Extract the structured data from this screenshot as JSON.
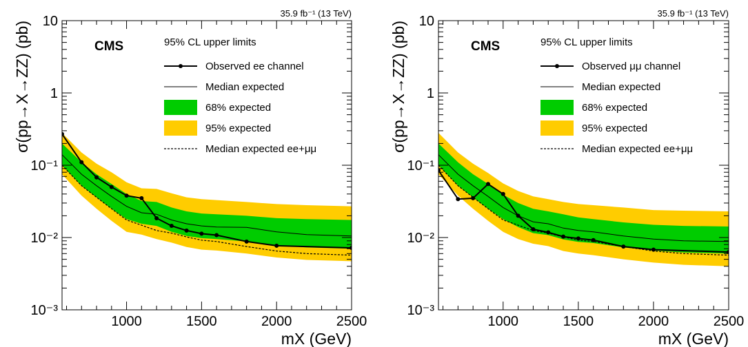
{
  "chart_data": [
    {
      "type": "line",
      "lumi_label": "35.9 fb⁻¹ (13 TeV)",
      "experiment": "CMS",
      "legend_title": "95% CL upper limits",
      "legend_placement": "top-right",
      "xlabel": "mX (GeV)",
      "ylabel": "σ(pp→X→ZZ) (pb)",
      "xlim": [
        570,
        2500
      ],
      "ylim": [
        0.001,
        10
      ],
      "yscale": "log",
      "x_ticks": [
        "1000",
        "1500",
        "2000",
        "2500"
      ],
      "y_ticks": [
        "10⁻³",
        "10⁻²",
        "10⁻¹",
        "1",
        "10"
      ],
      "series": [
        {
          "name": "Observed ee channel",
          "kind": "observed",
          "color": "#000000",
          "x": [
            570,
            700,
            800,
            900,
            1000,
            1100,
            1200,
            1300,
            1400,
            1500,
            1600,
            1800,
            2000,
            2500
          ],
          "y": [
            0.27,
            0.11,
            0.068,
            0.05,
            0.038,
            0.035,
            0.0185,
            0.0145,
            0.0125,
            0.0113,
            0.0108,
            0.0088,
            0.0077,
            0.0072
          ]
        },
        {
          "name": "Median expected",
          "kind": "median",
          "color": "#000000",
          "x": [
            570,
            700,
            800,
            900,
            1000,
            1100,
            1200,
            1300,
            1400,
            1500,
            1600,
            1800,
            2000,
            2200,
            2500
          ],
          "y": [
            0.14,
            0.075,
            0.052,
            0.037,
            0.027,
            0.022,
            0.021,
            0.0175,
            0.0155,
            0.0145,
            0.014,
            0.0138,
            0.012,
            0.011,
            0.0105
          ]
        },
        {
          "name": "68% expected",
          "kind": "band",
          "color": "#00cc00",
          "x": [
            570,
            700,
            800,
            900,
            1000,
            1100,
            1200,
            1300,
            1400,
            1500,
            1600,
            1800,
            2000,
            2200,
            2500
          ],
          "low": [
            0.1,
            0.052,
            0.036,
            0.025,
            0.018,
            0.0155,
            0.0145,
            0.012,
            0.0105,
            0.0098,
            0.0095,
            0.0088,
            0.0078,
            0.0073,
            0.007
          ],
          "high": [
            0.2,
            0.11,
            0.075,
            0.055,
            0.04,
            0.032,
            0.031,
            0.026,
            0.023,
            0.0215,
            0.021,
            0.02,
            0.0185,
            0.018,
            0.0175
          ]
        },
        {
          "name": "95% expected",
          "kind": "band",
          "color": "#ffcc00",
          "x": [
            570,
            700,
            800,
            900,
            1000,
            1100,
            1200,
            1300,
            1400,
            1500,
            1600,
            1800,
            2000,
            2200,
            2500
          ],
          "low": [
            0.075,
            0.038,
            0.025,
            0.017,
            0.012,
            0.011,
            0.0095,
            0.0085,
            0.0074,
            0.0068,
            0.0066,
            0.006,
            0.0053,
            0.0049,
            0.0047
          ],
          "high": [
            0.28,
            0.15,
            0.105,
            0.08,
            0.058,
            0.048,
            0.047,
            0.041,
            0.036,
            0.034,
            0.033,
            0.031,
            0.029,
            0.028,
            0.027
          ]
        },
        {
          "name": "Median expected ee+μμ",
          "kind": "dashed",
          "color": "#000000",
          "x": [
            570,
            700,
            800,
            900,
            1000,
            1100,
            1200,
            1300,
            1400,
            1500,
            1600,
            1800,
            2000,
            2200,
            2500
          ],
          "y": [
            0.1,
            0.052,
            0.036,
            0.025,
            0.0175,
            0.0148,
            0.0125,
            0.0115,
            0.0102,
            0.0092,
            0.0088,
            0.0075,
            0.0065,
            0.006,
            0.0057
          ]
        }
      ]
    },
    {
      "type": "line",
      "lumi_label": "35.9 fb⁻¹ (13 TeV)",
      "experiment": "CMS",
      "legend_title": "95% CL upper limits",
      "legend_placement": "top-right",
      "xlabel": "mX (GeV)",
      "ylabel": "σ(pp→X→ZZ) (pb)",
      "xlim": [
        570,
        2500
      ],
      "ylim": [
        0.001,
        10
      ],
      "yscale": "log",
      "x_ticks": [
        "1000",
        "1500",
        "2000",
        "2500"
      ],
      "y_ticks": [
        "10⁻³",
        "10⁻²",
        "10⁻¹",
        "1",
        "10"
      ],
      "series": [
        {
          "name": "Observed μμ channel",
          "kind": "observed",
          "color": "#000000",
          "x": [
            570,
            700,
            800,
            900,
            1000,
            1100,
            1200,
            1300,
            1400,
            1500,
            1600,
            1800,
            2000,
            2500
          ],
          "y": [
            0.085,
            0.034,
            0.035,
            0.055,
            0.04,
            0.02,
            0.013,
            0.0118,
            0.0103,
            0.0097,
            0.0092,
            0.0075,
            0.0068,
            0.0063
          ]
        },
        {
          "name": "Median expected",
          "kind": "median",
          "color": "#000000",
          "x": [
            570,
            700,
            800,
            900,
            1000,
            1100,
            1200,
            1300,
            1400,
            1500,
            1600,
            1800,
            2000,
            2200,
            2500
          ],
          "y": [
            0.14,
            0.075,
            0.052,
            0.037,
            0.026,
            0.02,
            0.0165,
            0.0155,
            0.0135,
            0.0125,
            0.012,
            0.0105,
            0.0095,
            0.009,
            0.0088
          ]
        },
        {
          "name": "68% expected",
          "kind": "band",
          "color": "#00cc00",
          "x": [
            570,
            700,
            800,
            900,
            1000,
            1100,
            1200,
            1300,
            1400,
            1500,
            1600,
            1800,
            2000,
            2200,
            2500
          ],
          "low": [
            0.1,
            0.052,
            0.036,
            0.025,
            0.018,
            0.014,
            0.0115,
            0.0108,
            0.0094,
            0.0087,
            0.0084,
            0.0073,
            0.0066,
            0.0062,
            0.006
          ],
          "high": [
            0.2,
            0.11,
            0.075,
            0.055,
            0.039,
            0.03,
            0.025,
            0.023,
            0.021,
            0.019,
            0.018,
            0.0162,
            0.015,
            0.0145,
            0.0142
          ]
        },
        {
          "name": "95% expected",
          "kind": "band",
          "color": "#ffcc00",
          "x": [
            570,
            700,
            800,
            900,
            1000,
            1100,
            1200,
            1300,
            1400,
            1500,
            1600,
            1800,
            2000,
            2200,
            2500
          ],
          "low": [
            0.075,
            0.038,
            0.025,
            0.017,
            0.012,
            0.0095,
            0.0082,
            0.0076,
            0.0065,
            0.006,
            0.0057,
            0.005,
            0.0045,
            0.0042,
            0.004
          ],
          "high": [
            0.28,
            0.15,
            0.105,
            0.078,
            0.056,
            0.044,
            0.037,
            0.034,
            0.031,
            0.029,
            0.028,
            0.026,
            0.024,
            0.0235,
            0.023
          ]
        },
        {
          "name": "Median expected ee+μμ",
          "kind": "dashed",
          "color": "#000000",
          "x": [
            570,
            700,
            800,
            900,
            1000,
            1100,
            1200,
            1300,
            1400,
            1500,
            1600,
            1800,
            2000,
            2200,
            2500
          ],
          "y": [
            0.1,
            0.052,
            0.036,
            0.025,
            0.0175,
            0.0148,
            0.0125,
            0.0115,
            0.0102,
            0.0092,
            0.0088,
            0.0075,
            0.0065,
            0.006,
            0.0057
          ]
        }
      ]
    }
  ]
}
